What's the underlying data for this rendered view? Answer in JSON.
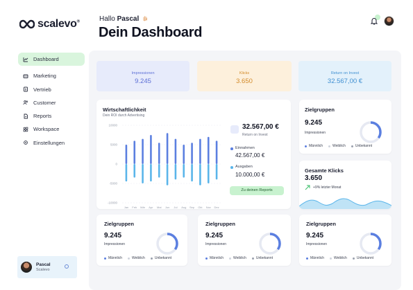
{
  "brand": {
    "name": "scalevo",
    "mark": "®"
  },
  "sidebar": {
    "items": [
      {
        "label": "Dashboard",
        "icon": "chart-icon"
      },
      {
        "label": "Marketing",
        "icon": "megaphone-icon"
      },
      {
        "label": "Vertrieb",
        "icon": "briefcase-icon"
      },
      {
        "label": "Customer",
        "icon": "users-icon"
      },
      {
        "label": "Reports",
        "icon": "document-icon"
      },
      {
        "label": "Workspace",
        "icon": "grid-icon"
      },
      {
        "label": "Einstellungen",
        "icon": "gear-icon"
      }
    ],
    "user": {
      "name": "Pascal",
      "company": "Scalevo"
    }
  },
  "header": {
    "greeting": "Hallo",
    "user_name": "Pascal",
    "title": "Dein Dashboard"
  },
  "kpis": [
    {
      "label": "Impressionen",
      "value": "9.245"
    },
    {
      "label": "Klicks",
      "value": "3.650"
    },
    {
      "label": "Return on Invest",
      "value": "32.567,00 €"
    }
  ],
  "wirtschaftlichkeit": {
    "title": "Wirtschaftlichkeit",
    "subtitle": "Dein ROI durch Advertising",
    "roi_value": "32.567,00 €",
    "roi_label": "Return on Invest",
    "income_label": "Einnahmen",
    "income_value": "42.567,00 €",
    "expense_label": "Ausgaben",
    "expense_value": "10.000,00 €",
    "button_label": "Zu deinen Reports"
  },
  "chart_data": {
    "type": "bar",
    "title": "",
    "y_ticks": [
      "10000",
      "5000",
      "0",
      "-5000",
      "-10000"
    ],
    "ylim": [
      -10000,
      10000
    ],
    "categories": [
      "Jan",
      "Feb",
      "Mär",
      "Apr",
      "Mai",
      "Jun",
      "Jul",
      "Aug",
      "Sep",
      "Okt",
      "Nov",
      "Dez"
    ],
    "series": [
      {
        "name": "Einnahmen",
        "values": [
          5000,
          6000,
          6500,
          7500,
          5500,
          8000,
          6500,
          5000,
          5500,
          6500,
          7000,
          6000
        ]
      },
      {
        "name": "Ausgaben",
        "values": [
          -4500,
          -3500,
          -5000,
          -4500,
          -3500,
          -5500,
          -4000,
          -3500,
          -4500,
          -5500,
          -5000,
          -4000
        ]
      }
    ],
    "colors": {
      "Einnahmen": "#5b7fe0",
      "Ausgaben": "#5ab5ea"
    },
    "grid": true
  },
  "zielgruppen_cards": [
    {
      "title": "Zielgruppen",
      "value": "9.245",
      "subtitle": "Impressionen",
      "fraction": 0.35
    },
    {
      "title": "Zielgruppen",
      "value": "9.245",
      "subtitle": "Impressionen",
      "fraction": 0.35
    },
    {
      "title": "Zielgruppen",
      "value": "9.245",
      "subtitle": "Impressionen",
      "fraction": 0.35
    },
    {
      "title": "Zielgruppen",
      "value": "9.245",
      "subtitle": "Impressionen",
      "fraction": 0.35
    }
  ],
  "zielgruppen_legend": [
    "Männlich",
    "Weiblich",
    "Unbekannt"
  ],
  "legend_colors": [
    "#5b7fe0",
    "#cfd3dc",
    "#9aa0ad"
  ],
  "clicks_card": {
    "title": "Gesamte Klicks",
    "value": "3.650",
    "trend": "+9% letzter Monat"
  },
  "colors": {
    "accent_green": "#c8f2cf",
    "accent_blue": "#5b7fe0",
    "light_blue": "#5ab5ea"
  }
}
